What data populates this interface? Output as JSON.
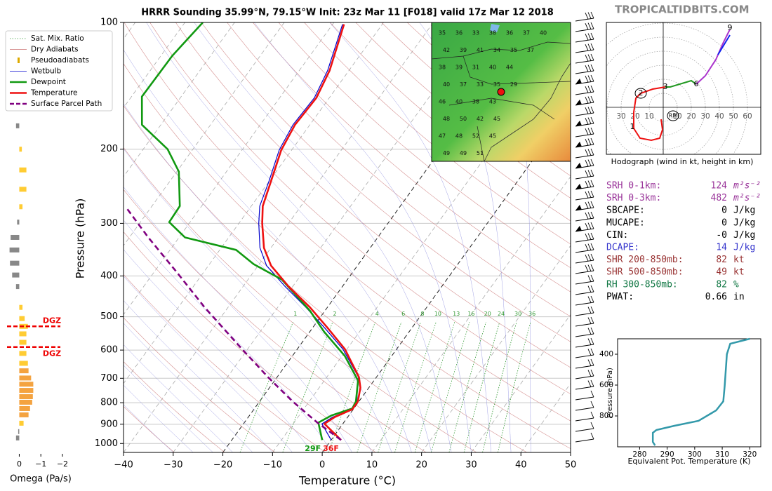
{
  "site": "TROPICALTIDBITS.COM",
  "params": [
    {
      "label": "SRH 0-1km:",
      "value": "124",
      "unit": "m²s⁻²",
      "color": "#993399"
    },
    {
      "label": "SRH 0-3km:",
      "value": "482",
      "unit": "m²s⁻²",
      "color": "#993399"
    },
    {
      "label": "SBCAPE:",
      "value": "0",
      "unit": "J/kg",
      "color": "#000000"
    },
    {
      "label": "MUCAPE:",
      "value": "0",
      "unit": "J/kg",
      "color": "#000000"
    },
    {
      "label": "CIN:",
      "value": "-0",
      "unit": "J/kg",
      "color": "#000000"
    },
    {
      "label": "DCAPE:",
      "value": "14",
      "unit": "J/kg",
      "color": "#3333cc"
    },
    {
      "label": "SHR 200-850mb:",
      "value": "82",
      "unit": "kt",
      "color": "#993333"
    },
    {
      "label": "SHR 500-850mb:",
      "value": "49",
      "unit": "kt",
      "color": "#993333"
    },
    {
      "label": "RH 300-850mb:",
      "value": "82",
      "unit": "%",
      "color": "#117744"
    },
    {
      "label": "PWAT:",
      "value": "0.66",
      "unit": "in",
      "color": "#000000"
    }
  ],
  "map_labels": [
    [
      "35",
      "36",
      "33",
      "38",
      "36",
      "37",
      "40"
    ],
    [
      "42",
      "39",
      "41",
      "34",
      "35",
      "37"
    ],
    [
      "38",
      "39",
      "31",
      "40",
      "44"
    ],
    [
      "40",
      "37",
      "33",
      "35",
      "29"
    ],
    [
      "46",
      "40",
      "38",
      "43"
    ],
    [
      "48",
      "50",
      "42",
      "45"
    ],
    [
      "47",
      "48",
      "52",
      "45"
    ],
    [
      "49",
      "49",
      "51"
    ]
  ],
  "chart_data": [
    {
      "type": "skewt",
      "title": "HRRR Sounding 35.99°N, 79.15°W Init: 23z Mar 11 [F018] valid 17z Mar 12 2018",
      "xlabel": "Temperature (°C)",
      "ylabel": "Pressure (hPa)",
      "xlim": [
        -40,
        50
      ],
      "ylim": [
        1050,
        100
      ],
      "log_y": true,
      "xticks": [
        {
          "value": -40,
          "label": "−40"
        },
        {
          "value": -30,
          "label": "−30"
        },
        {
          "value": -20,
          "label": "−20"
        },
        {
          "value": -10,
          "label": "−10"
        },
        0,
        10,
        20,
        30,
        40,
        50
      ],
      "yticks": [
        100,
        200,
        300,
        400,
        500,
        600,
        700,
        800,
        900,
        1000
      ],
      "grid": true,
      "background_lines": [
        {
          "name": "Sat. Mix. Ratio",
          "color": "#339933"
        },
        {
          "name": "Dry Adiabats",
          "color": "#cc7777"
        },
        {
          "name": "Pseudoadiabats",
          "color": "#ddaa00"
        }
      ],
      "mixing_ratio_labels": [
        1,
        2,
        4,
        6,
        8,
        10,
        13,
        16,
        20,
        24,
        30,
        36
      ],
      "series": [
        {
          "name": "Wetbulb",
          "color": "#0000cc",
          "pressures": [
            981,
            898,
            865,
            829,
            795,
            737,
            696,
            597,
            532,
            475,
            424,
            378,
            343,
            300,
            273,
            239,
            201,
            175,
            151,
            130,
            101
          ],
          "values": [
            0.0,
            -4.2,
            -3.0,
            -0.3,
            -0.4,
            -2.3,
            -3.6,
            -10.8,
            -17.5,
            -24.3,
            -31.5,
            -38.3,
            -42.2,
            -46.0,
            -48.3,
            -50.0,
            -52.5,
            -53.4,
            -53.0,
            -54.3,
            -58.0
          ]
        },
        {
          "name": "Dewpoint",
          "color": "#119911",
          "pressures": [
            981,
            892,
            858,
            826,
            795,
            709,
            620,
            543,
            484,
            408,
            375,
            347,
            324,
            298,
            273,
            226,
            200,
            175,
            150,
            120,
            100
          ],
          "values": [
            -1.8,
            -5.1,
            -3.5,
            -0.3,
            -0.6,
            -3.2,
            -9.4,
            -17.1,
            -23.0,
            -33.2,
            -41.1,
            -46.7,
            -58.8,
            -64.2,
            -64.4,
            -69.6,
            -75.1,
            -83.8,
            -87.9,
            -87.7,
            -86.4
          ]
        },
        {
          "name": "Temperature",
          "color": "#ee1111",
          "pressures": [
            981,
            898,
            865,
            829,
            795,
            737,
            696,
            597,
            532,
            475,
            424,
            378,
            343,
            300,
            273,
            239,
            201,
            175,
            151,
            130,
            101
          ],
          "values": [
            2.0,
            -3.7,
            -2.6,
            -0.2,
            -0.2,
            -1.7,
            -3.5,
            -10.4,
            -16.9,
            -23.5,
            -30.8,
            -37.4,
            -41.4,
            -45.3,
            -47.7,
            -49.6,
            -52.1,
            -53.0,
            -52.6,
            -53.9,
            -57.7
          ]
        },
        {
          "name": "Surface Parcel Path",
          "color": "#800080",
          "pressures": [
            981,
            892,
            795,
            696,
            589,
            475,
            392,
            324,
            274
          ],
          "values": [
            2.0,
            -5.3,
            -13.3,
            -21.8,
            -31.9,
            -44.7,
            -55.4,
            -66.2,
            -75.2
          ]
        }
      ],
      "annotations": [
        {
          "text": "29F",
          "color": "#119911"
        },
        {
          "text": "36F",
          "color": "#ee1111"
        }
      ]
    },
    {
      "type": "barh",
      "xlabel": "Omega (Pa/s)",
      "xlim": [
        0.6,
        -2.1
      ],
      "ylim": [
        1050,
        100
      ],
      "xticks": [
        0,
        {
          "value": -1,
          "label": "−1"
        },
        {
          "value": -2,
          "label": "−2"
        }
      ],
      "pressures": [
        176,
        200,
        224,
        249,
        274,
        298,
        324,
        347,
        373,
        398,
        424,
        475,
        505,
        527,
        549,
        575,
        611,
        645,
        672,
        699,
        723,
        748,
        774,
        798,
        826,
        855,
        895,
        937,
        970
      ],
      "values": [
        0.15,
        -0.12,
        -0.33,
        -0.33,
        -0.15,
        0.1,
        0.4,
        0.45,
        0.43,
        0.33,
        0.15,
        -0.15,
        -0.25,
        -0.4,
        -0.33,
        -0.33,
        -0.33,
        -0.4,
        -0.43,
        -0.55,
        -0.65,
        -0.65,
        -0.63,
        -0.6,
        -0.5,
        -0.43,
        -0.2,
        0.05,
        0.15
      ],
      "colors": [
        "#888888",
        "#ffcc33",
        "#ffcc33",
        "#ffcc33",
        "#ffcc33",
        "#888888",
        "#888888",
        "#888888",
        "#888888",
        "#888888",
        "#888888",
        "#ffcc33",
        "#ffcc33",
        "#ffcc33",
        "#ffcc33",
        "#ffcc33",
        "#ffcc33",
        "#ffcc33",
        "#f4a340",
        "#f4a340",
        "#f4a340",
        "#f4a340",
        "#f4a340",
        "#f4a340",
        "#f4a340",
        "#f4a340",
        "#ffcc33",
        "#888888",
        "#888888"
      ],
      "dgz": {
        "label": "DGZ",
        "pressures": [
          527,
          590
        ],
        "color": "#ee0000"
      }
    },
    {
      "type": "hodograph",
      "xlabel": "Hodograph (wind in kt, height in km)",
      "xlim": [
        -40.5,
        69.5
      ],
      "ylim": [
        -33.5,
        60.5
      ],
      "xticks": [
        {
          "value": -30,
          "label": "30"
        },
        {
          "value": -20,
          "label": "20"
        },
        {
          "value": -10,
          "label": "10"
        },
        10,
        20,
        30,
        40,
        50,
        60
      ],
      "series": [
        {
          "color": "#ee1111",
          "x": [
            -1.5,
            -0.5,
            -2.5,
            -8.5,
            -16.5,
            -21,
            -21,
            -19.5,
            -16,
            -7.5,
            1.5
          ],
          "values": [
            -8.5,
            -16,
            -22,
            -23.5,
            -22,
            -15,
            -3.5,
            6.5,
            10,
            13,
            14.5
          ]
        },
        {
          "color": "#229922",
          "x": [
            1.5,
            5,
            15,
            20,
            23.5
          ],
          "values": [
            14.5,
            14.5,
            17.5,
            19,
            16.5
          ]
        },
        {
          "color": "#aa33cc",
          "x": [
            23.5,
            30,
            37.5,
            42.5,
            47.5
          ],
          "values": [
            16.5,
            22.5,
            34,
            45.5,
            55.5
          ]
        },
        {
          "color": "#1122ee",
          "x": [
            39,
            47.5
          ],
          "values": [
            37.5,
            51.5
          ]
        }
      ],
      "height_labels": [
        {
          "label": "1",
          "u": -22,
          "v": -14,
          "circled": false
        },
        {
          "label": "2",
          "u": -16,
          "v": 10,
          "circled": true
        },
        {
          "label": "3",
          "u": 1.5,
          "v": 14.5,
          "circled": false
        },
        {
          "label": "6",
          "u": 23.5,
          "v": 16.5,
          "circled": false
        },
        {
          "label": "9",
          "u": 47.5,
          "v": 56.5,
          "circled": false
        },
        {
          "label": "RM",
          "u": 7,
          "v": -6,
          "circled": true
        }
      ]
    },
    {
      "type": "line",
      "xlabel": "Equivalent Pot. Temperature (K)",
      "ylabel": "Pressure (hPa)",
      "xlim": [
        272,
        324
      ],
      "ylim": [
        1000,
        300
      ],
      "xticks": [
        280,
        290,
        300,
        310,
        320
      ],
      "yticks": [
        400,
        600,
        800
      ],
      "color": "#3399aa",
      "pressures": [
        300,
        332,
        400,
        605,
        705,
        764,
        832,
        864,
        891,
        909,
        968,
        991
      ],
      "values": [
        320,
        312.9,
        311.7,
        310.9,
        310.4,
        307.8,
        301.4,
        292.5,
        286.1,
        284.8,
        284.8,
        285.6
      ]
    }
  ]
}
